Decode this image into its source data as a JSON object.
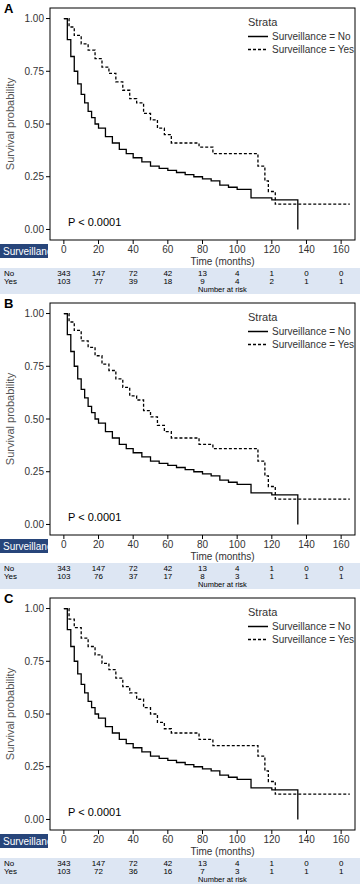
{
  "chart_data": [
    {
      "type": "line",
      "title": "A",
      "xlabel": "Time (months)",
      "ylabel": "Survival probability",
      "legend_title": "Strata",
      "legend": "top-right",
      "grid": false,
      "annotation": "P < 0.0001",
      "xlim": [
        -8,
        168
      ],
      "ylim": [
        -0.05,
        1.05
      ],
      "xticks": [
        0,
        20,
        40,
        60,
        80,
        100,
        120,
        140,
        160
      ],
      "yticks": [
        {
          "value": 0,
          "label": "0.00"
        },
        {
          "value": 0.25,
          "label": "0.25"
        },
        {
          "value": 0.5,
          "label": "0.50"
        },
        {
          "value": 0.75,
          "label": "0.75"
        },
        {
          "value": 1,
          "label": "1.00"
        }
      ],
      "series": [
        {
          "name": "Surveillance = No",
          "color": "#000000",
          "line_style": "solid",
          "x": [
            0,
            2,
            4,
            6,
            8,
            10,
            12,
            14,
            16,
            18,
            20,
            24,
            28,
            32,
            36,
            40,
            45,
            50,
            55,
            60,
            65,
            70,
            75,
            80,
            85,
            90,
            95,
            100,
            108,
            120,
            135
          ],
          "values": [
            1,
            0.9,
            0.82,
            0.75,
            0.69,
            0.64,
            0.6,
            0.56,
            0.53,
            0.5,
            0.48,
            0.44,
            0.41,
            0.38,
            0.36,
            0.34,
            0.32,
            0.3,
            0.29,
            0.28,
            0.27,
            0.26,
            0.25,
            0.24,
            0.23,
            0.21,
            0.2,
            0.19,
            0.15,
            0.14,
            0
          ]
        },
        {
          "name": "Surveillance = Yes",
          "color": "#000000",
          "line_style": "dashed",
          "x": [
            0,
            3,
            6,
            10,
            14,
            18,
            22,
            26,
            30,
            34,
            38,
            42,
            46,
            50,
            54,
            58,
            62,
            70,
            78,
            86,
            100,
            112,
            116,
            118,
            122,
            165
          ],
          "values": [
            1,
            0.96,
            0.92,
            0.88,
            0.85,
            0.81,
            0.77,
            0.74,
            0.7,
            0.66,
            0.62,
            0.6,
            0.55,
            0.52,
            0.48,
            0.45,
            0.41,
            0.41,
            0.39,
            0.36,
            0.36,
            0.3,
            0.23,
            0.18,
            0.12,
            0.12
          ]
        }
      ],
      "risk_table": {
        "header": "Surveillance",
        "caption": "Number at risk",
        "times": [
          0,
          20,
          40,
          60,
          80,
          100,
          120,
          140,
          160
        ],
        "rows": [
          {
            "name": "No",
            "values": [
              343,
              147,
              72,
              42,
              13,
              4,
              1,
              0,
              0
            ]
          },
          {
            "name": "Yes",
            "values": [
              103,
              77,
              39,
              18,
              9,
              4,
              2,
              1,
              1
            ]
          }
        ]
      }
    },
    {
      "type": "line",
      "title": "B",
      "xlabel": "Time (months)",
      "ylabel": "Survival probability",
      "legend_title": "Strata",
      "legend": "top-right",
      "grid": false,
      "annotation": "P < 0.0001",
      "xlim": [
        -8,
        168
      ],
      "ylim": [
        -0.05,
        1.05
      ],
      "xticks": [
        0,
        20,
        40,
        60,
        80,
        100,
        120,
        140,
        160
      ],
      "yticks": [
        {
          "value": 0,
          "label": "0.00"
        },
        {
          "value": 0.25,
          "label": "0.25"
        },
        {
          "value": 0.5,
          "label": "0.50"
        },
        {
          "value": 0.75,
          "label": "0.75"
        },
        {
          "value": 1,
          "label": "1.00"
        }
      ],
      "series": [
        {
          "name": "Surveillance = No",
          "color": "#000000",
          "line_style": "solid",
          "x": [
            0,
            2,
            4,
            6,
            8,
            10,
            12,
            14,
            16,
            18,
            20,
            24,
            28,
            32,
            36,
            40,
            45,
            50,
            55,
            60,
            65,
            70,
            75,
            80,
            85,
            90,
            95,
            100,
            108,
            120,
            135
          ],
          "values": [
            1,
            0.9,
            0.82,
            0.75,
            0.69,
            0.64,
            0.6,
            0.56,
            0.53,
            0.5,
            0.48,
            0.44,
            0.41,
            0.38,
            0.36,
            0.34,
            0.32,
            0.3,
            0.29,
            0.28,
            0.27,
            0.26,
            0.25,
            0.24,
            0.23,
            0.21,
            0.2,
            0.19,
            0.15,
            0.14,
            0
          ]
        },
        {
          "name": "Surveillance = Yes",
          "color": "#000000",
          "line_style": "dashed",
          "x": [
            0,
            3,
            6,
            10,
            14,
            18,
            22,
            26,
            30,
            34,
            38,
            42,
            46,
            50,
            54,
            58,
            62,
            70,
            78,
            86,
            100,
            112,
            116,
            118,
            122,
            165
          ],
          "values": [
            1,
            0.96,
            0.92,
            0.87,
            0.84,
            0.8,
            0.76,
            0.73,
            0.69,
            0.65,
            0.61,
            0.59,
            0.54,
            0.51,
            0.47,
            0.44,
            0.41,
            0.41,
            0.38,
            0.36,
            0.36,
            0.3,
            0.23,
            0.18,
            0.12,
            0.12
          ]
        }
      ],
      "risk_table": {
        "header": "Surveillance",
        "caption": "Number at risk",
        "times": [
          0,
          20,
          40,
          60,
          80,
          100,
          120,
          140,
          160
        ],
        "rows": [
          {
            "name": "No",
            "values": [
              343,
              147,
              72,
              42,
              13,
              4,
              1,
              0,
              0
            ]
          },
          {
            "name": "Yes",
            "values": [
              103,
              76,
              37,
              17,
              8,
              3,
              1,
              1,
              1
            ]
          }
        ]
      }
    },
    {
      "type": "line",
      "title": "C",
      "xlabel": "Time (months)",
      "ylabel": "Survival probability",
      "legend_title": "Strata",
      "legend": "top-right",
      "grid": false,
      "annotation": "P < 0.0001",
      "xlim": [
        -8,
        168
      ],
      "ylim": [
        -0.05,
        1.05
      ],
      "xticks": [
        0,
        20,
        40,
        60,
        80,
        100,
        120,
        140,
        160
      ],
      "yticks": [
        {
          "value": 0,
          "label": "0.00"
        },
        {
          "value": 0.25,
          "label": "0.25"
        },
        {
          "value": 0.5,
          "label": "0.50"
        },
        {
          "value": 0.75,
          "label": "0.75"
        },
        {
          "value": 1,
          "label": "1.00"
        }
      ],
      "series": [
        {
          "name": "Surveillance = No",
          "color": "#000000",
          "line_style": "solid",
          "x": [
            0,
            2,
            4,
            6,
            8,
            10,
            12,
            14,
            16,
            18,
            20,
            24,
            28,
            32,
            36,
            40,
            45,
            50,
            55,
            60,
            65,
            70,
            75,
            80,
            85,
            90,
            95,
            100,
            108,
            120,
            135
          ],
          "values": [
            1,
            0.9,
            0.82,
            0.75,
            0.69,
            0.64,
            0.6,
            0.56,
            0.53,
            0.5,
            0.48,
            0.44,
            0.41,
            0.38,
            0.36,
            0.34,
            0.32,
            0.3,
            0.29,
            0.28,
            0.27,
            0.26,
            0.25,
            0.24,
            0.23,
            0.21,
            0.2,
            0.19,
            0.15,
            0.14,
            0
          ]
        },
        {
          "name": "Surveillance = Yes",
          "color": "#000000",
          "line_style": "dashed",
          "x": [
            0,
            3,
            6,
            10,
            14,
            18,
            22,
            26,
            30,
            34,
            38,
            42,
            46,
            50,
            54,
            58,
            62,
            70,
            78,
            86,
            100,
            112,
            116,
            118,
            122,
            165
          ],
          "values": [
            1,
            0.95,
            0.91,
            0.86,
            0.82,
            0.78,
            0.74,
            0.71,
            0.67,
            0.63,
            0.6,
            0.57,
            0.53,
            0.5,
            0.46,
            0.43,
            0.41,
            0.41,
            0.38,
            0.35,
            0.35,
            0.3,
            0.23,
            0.18,
            0.12,
            0.12
          ]
        }
      ],
      "risk_table": {
        "header": "Surveillance",
        "caption": "Number at risk",
        "times": [
          0,
          20,
          40,
          60,
          80,
          100,
          120,
          140,
          160
        ],
        "rows": [
          {
            "name": "No",
            "values": [
              343,
              147,
              72,
              42,
              13,
              4,
              1,
              0,
              0
            ]
          },
          {
            "name": "Yes",
            "values": [
              103,
              72,
              36,
              16,
              7,
              3,
              1,
              1,
              1
            ]
          }
        ]
      }
    }
  ]
}
